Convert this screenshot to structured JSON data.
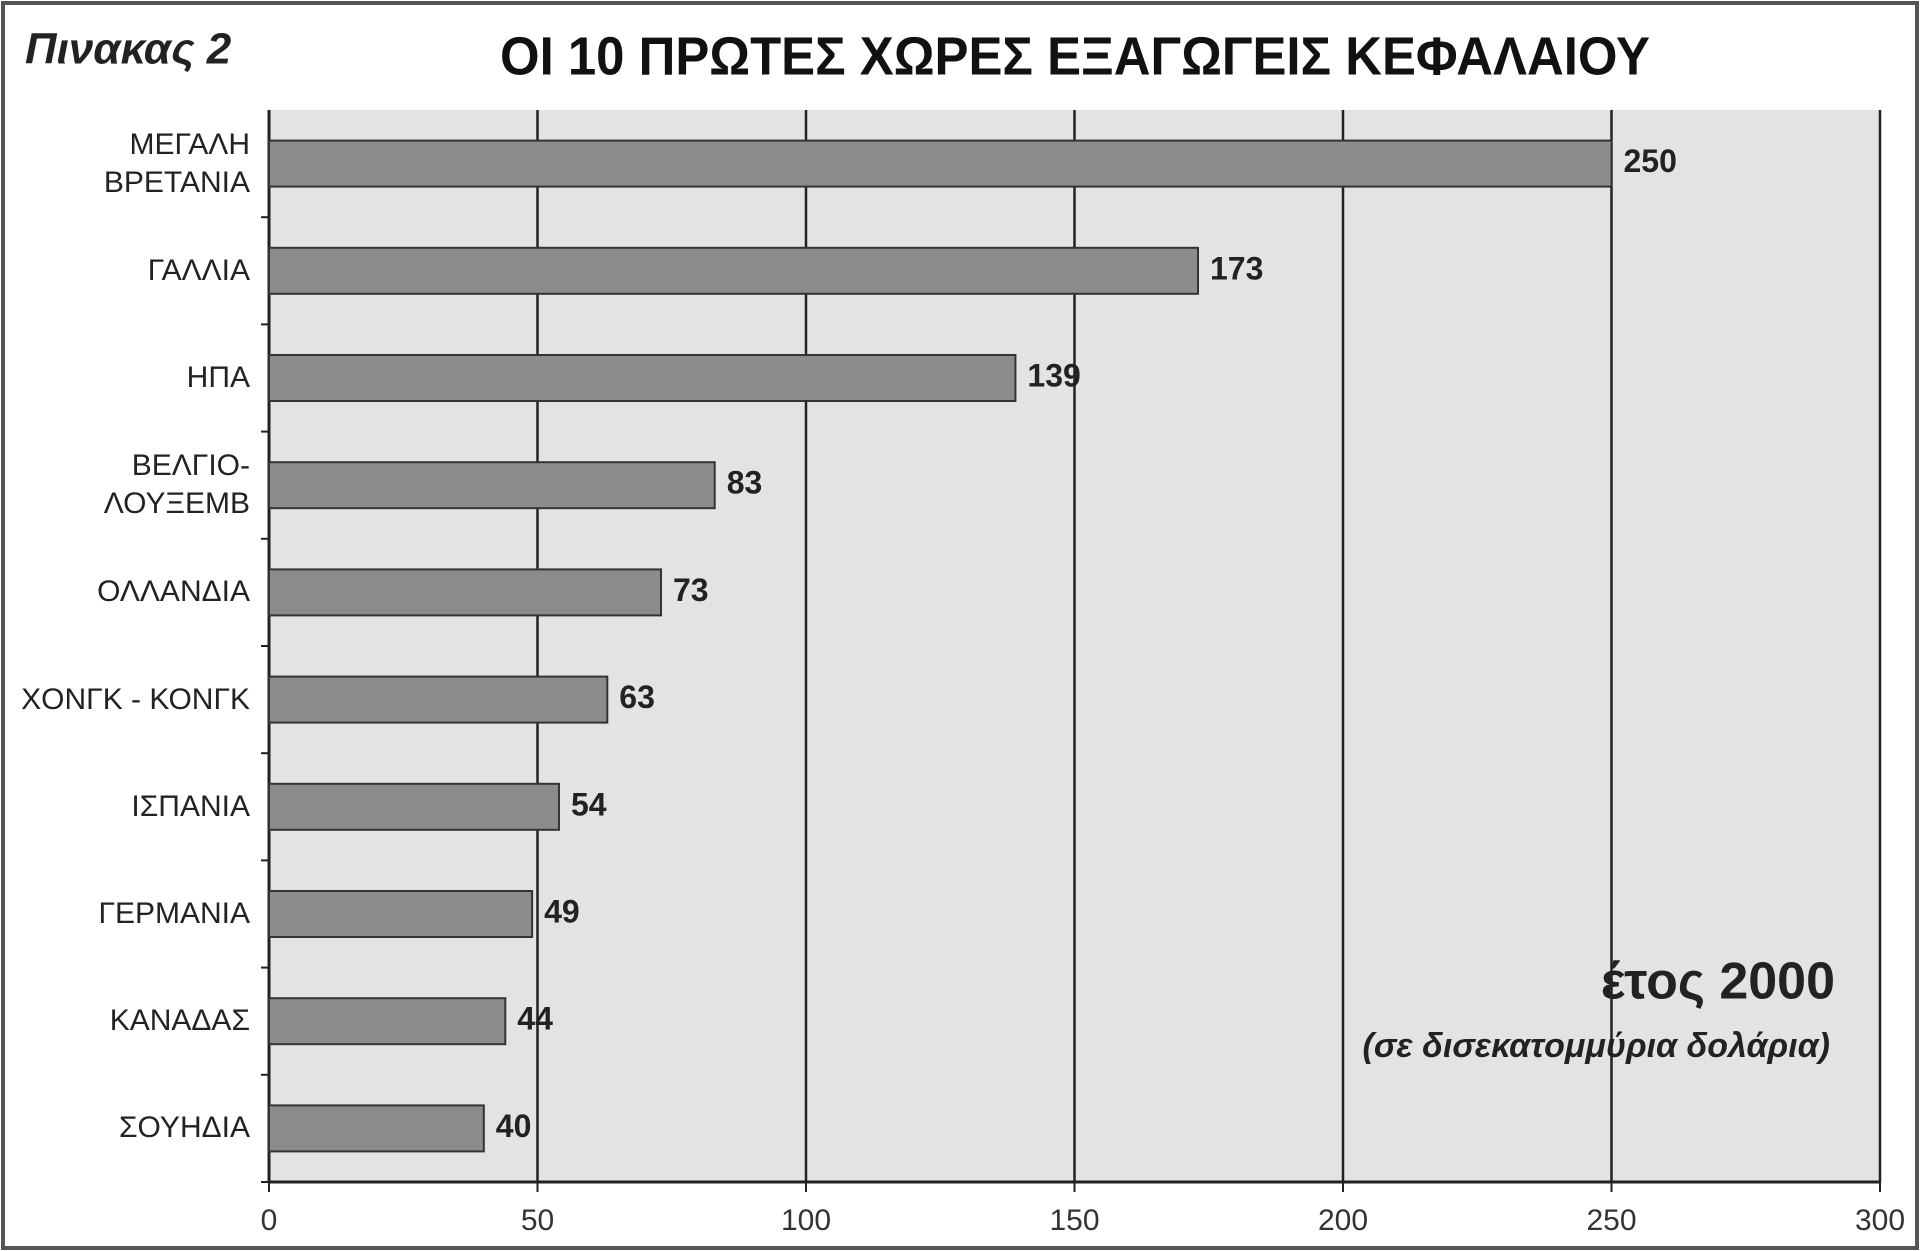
{
  "chart_data": {
    "type": "barh",
    "label": "Πινακας 2",
    "title": "ΟΙ 10 ΠΡΩΤΕΣ ΧΩΡΕΣ ΕΞΑΓΩΓΕΙΣ ΚΕΦΑΛΑΙΟΥ",
    "annotation": "έτος 2000",
    "subannotation": "(σε δισεκατομμύρια  δολάρια)",
    "categories": [
      "ΜΕΓΑΛΗ\nΒΡΕΤΑΝΙΑ",
      "ΓΑΛΛΙΑ",
      "ΗΠΑ",
      "ΒΕΛΓΙΟ-\nΛΟΥΞΕΜΒ",
      "ΟΛΛΑΝΔΙΑ",
      "ΧΟΝΓΚ - ΚΟΝΓΚ",
      "ΙΣΠΑΝΙΑ",
      "ΓΕΡΜΑΝΙΑ",
      "ΚΑΝΑΔΑΣ",
      "ΣΟΥΗΔΙΑ"
    ],
    "values": [
      250,
      173,
      139,
      83,
      73,
      63,
      54,
      49,
      44,
      40
    ],
    "color": "#8c8c8c",
    "xlim": [
      0,
      300
    ],
    "xticks": [
      0,
      50,
      100,
      150,
      200,
      250,
      300
    ],
    "grid": true
  }
}
